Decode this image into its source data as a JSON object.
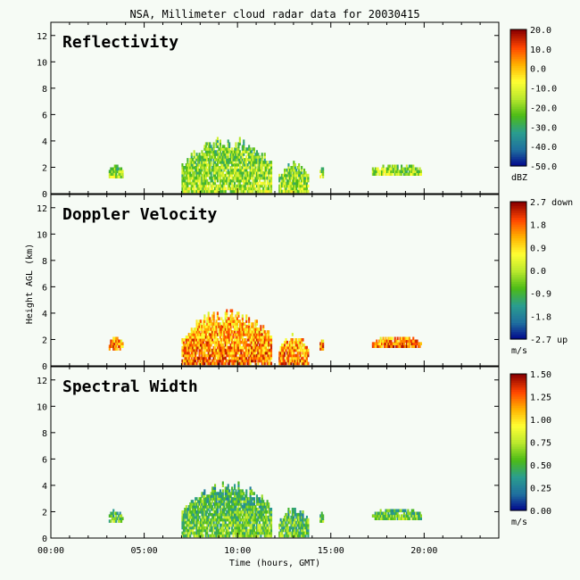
{
  "chart_data": {
    "type": "heatmap",
    "title": "NSA, Millimeter cloud radar data for 20030415",
    "xlabel": "Time (hours, GMT)",
    "ylabel": "Height AGL (km)",
    "xlim": [
      0,
      24
    ],
    "ylim": [
      0,
      13
    ],
    "x_ticks": [
      "00:00",
      "05:00",
      "10:00",
      "15:00",
      "20:00"
    ],
    "y_ticks": [
      "0",
      "2",
      "4",
      "6",
      "8",
      "10",
      "12"
    ],
    "panels": [
      {
        "name": "Reflectivity",
        "unit": "dBZ",
        "colorbar_ticks": [
          "20.0",
          "10.0",
          "0.0",
          "-10.0",
          "-20.0",
          "-30.0",
          "-40.0",
          "-50.0"
        ],
        "range": [
          -50,
          20
        ],
        "palette": [
          "#00008b",
          "#1f6f9f",
          "#2a9d8f",
          "#4cbb17",
          "#b9e82d",
          "#ffff33",
          "#ffb000",
          "#ff4500",
          "#8b0000"
        ],
        "cloud_level": 0.38
      },
      {
        "name": "Doppler Velocity",
        "unit": "m/s",
        "colorbar_ticks": [
          "2.7 down",
          "1.8",
          "0.9",
          "0.0",
          "-0.9",
          "-1.8",
          "-2.7 up"
        ],
        "range": [
          -2.7,
          2.7
        ],
        "palette": [
          "#00008b",
          "#1f6f9f",
          "#2a9d8f",
          "#4cbb17",
          "#b9e82d",
          "#ffff33",
          "#ffb000",
          "#ff4500",
          "#8b0000"
        ],
        "cloud_level": 0.7
      },
      {
        "name": "Spectral Width",
        "unit": "m/s",
        "colorbar_ticks": [
          "1.50",
          "1.25",
          "1.00",
          "0.75",
          "0.50",
          "0.25",
          "0.00"
        ],
        "range": [
          0,
          1.5
        ],
        "palette": [
          "#00008b",
          "#1f6f9f",
          "#2a9d8f",
          "#4cbb17",
          "#b9e82d",
          "#ffff33",
          "#ffb000",
          "#ff4500",
          "#8b0000"
        ],
        "cloud_level": 0.3
      }
    ],
    "cloud_echoes": [
      {
        "t_start": 3.1,
        "t_end": 3.8,
        "h_base": 1.2,
        "h_top": 2.2
      },
      {
        "t_start": 7.0,
        "t_end": 11.8,
        "h_base": 0.1,
        "h_top": 4.3
      },
      {
        "t_start": 12.2,
        "t_end": 13.8,
        "h_base": 0.1,
        "h_top": 2.4
      },
      {
        "t_start": 14.4,
        "t_end": 14.6,
        "h_base": 1.2,
        "h_top": 2.0
      },
      {
        "t_start": 17.2,
        "t_end": 19.8,
        "h_base": 1.4,
        "h_top": 2.2
      }
    ]
  }
}
